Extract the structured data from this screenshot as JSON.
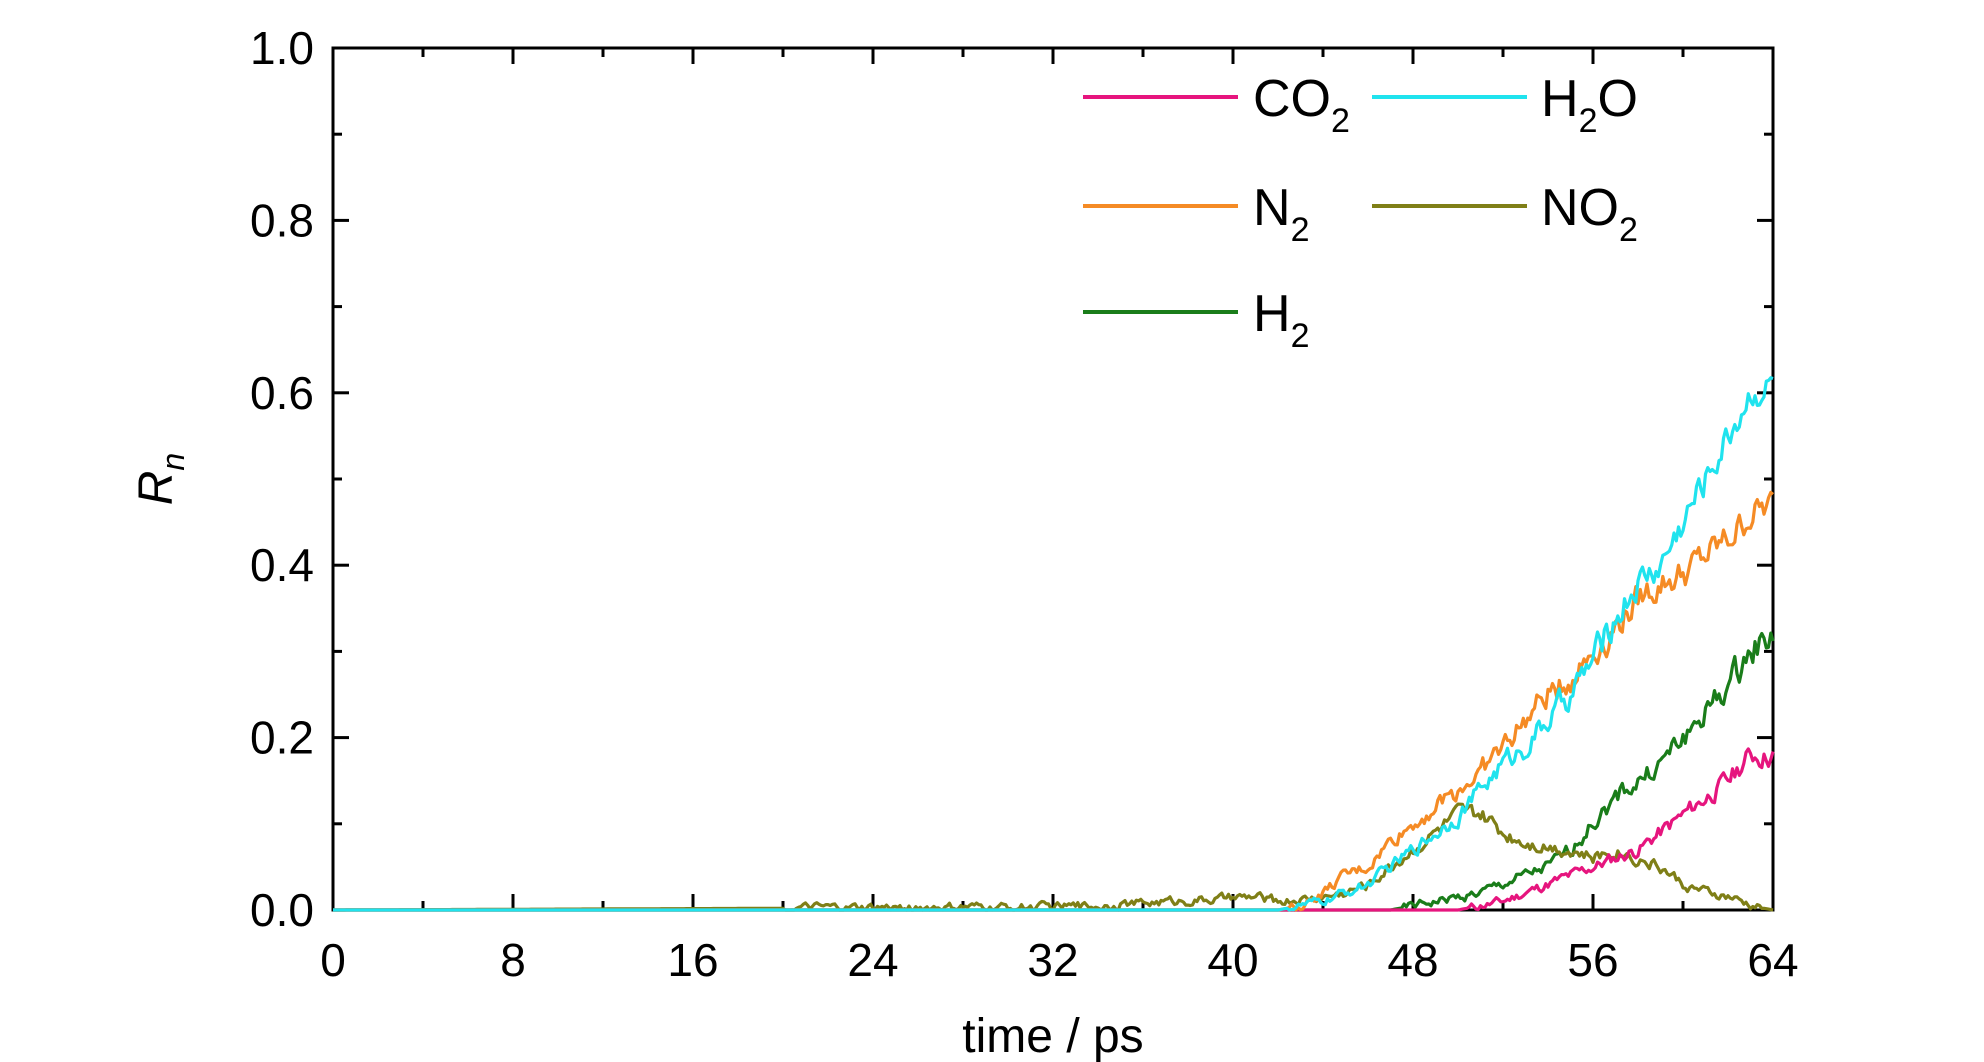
{
  "chart_data": {
    "type": "line",
    "xlabel": "time / ps",
    "ylabel": "R_n",
    "xlim": [
      0,
      64
    ],
    "ylim": [
      0,
      1.0
    ],
    "x_ticks": [
      "0",
      "8",
      "16",
      "24",
      "32",
      "40",
      "48",
      "56",
      "64"
    ],
    "y_ticks": [
      "0.0",
      "0.2",
      "0.4",
      "0.6",
      "0.8",
      "1.0"
    ],
    "grid": false,
    "legend_position": "top-right",
    "series": [
      {
        "name": "CO2",
        "label_main": "CO",
        "label_sub": "2",
        "label_tail": "",
        "color": "#e6157e",
        "x": [
          0,
          44,
          46,
          48,
          50,
          51,
          52,
          53,
          54,
          55,
          56,
          57,
          58,
          59,
          60,
          61,
          62,
          63,
          64
        ],
        "y": [
          0,
          0,
          0,
          0,
          0,
          0.005,
          0.01,
          0.02,
          0.03,
          0.04,
          0.05,
          0.06,
          0.07,
          0.09,
          0.11,
          0.13,
          0.15,
          0.18,
          0.18
        ]
      },
      {
        "name": "H2O",
        "label_main": "H",
        "label_sub": "2",
        "label_tail": "O",
        "color": "#20e3ee",
        "x": [
          0,
          42,
          44,
          46,
          47,
          48,
          49,
          50,
          51,
          52,
          53,
          54,
          55,
          56,
          57,
          58,
          59,
          60,
          61,
          62,
          63,
          64
        ],
        "y": [
          0,
          0,
          0.01,
          0.03,
          0.05,
          0.07,
          0.09,
          0.11,
          0.14,
          0.17,
          0.19,
          0.22,
          0.25,
          0.29,
          0.34,
          0.38,
          0.4,
          0.45,
          0.5,
          0.55,
          0.6,
          0.61
        ]
      },
      {
        "name": "N2",
        "label_main": "N",
        "label_sub": "2",
        "label_tail": "",
        "color": "#f58b25",
        "x": [
          0,
          42,
          43,
          44,
          45,
          46,
          47,
          48,
          49,
          50,
          51,
          52,
          53,
          54,
          55,
          56,
          57,
          58,
          59,
          60,
          61,
          62,
          63,
          64
        ],
        "y": [
          0,
          0,
          0.005,
          0.02,
          0.04,
          0.05,
          0.08,
          0.1,
          0.12,
          0.14,
          0.16,
          0.19,
          0.22,
          0.25,
          0.27,
          0.3,
          0.33,
          0.36,
          0.38,
          0.39,
          0.41,
          0.43,
          0.46,
          0.47
        ]
      },
      {
        "name": "NO2",
        "label_main": "NO",
        "label_sub": "2",
        "label_tail": "",
        "color": "#7f7f17",
        "x": [
          0,
          30,
          34,
          37,
          39,
          41,
          42,
          43,
          44,
          45,
          46,
          47,
          48,
          49,
          50,
          51,
          52,
          53,
          54,
          55,
          56,
          57,
          58,
          59,
          60,
          61,
          62,
          63,
          64
        ],
        "y": [
          0,
          0.003,
          0.005,
          0.01,
          0.012,
          0.015,
          0.01,
          0.012,
          0.015,
          0.02,
          0.03,
          0.05,
          0.07,
          0.09,
          0.11,
          0.11,
          0.09,
          0.08,
          0.075,
          0.07,
          0.06,
          0.07,
          0.06,
          0.05,
          0.03,
          0.02,
          0.015,
          0.005,
          0
        ]
      },
      {
        "name": "H2",
        "label_main": "H",
        "label_sub": "2",
        "label_tail": "",
        "color": "#1a7d1a",
        "x": [
          0,
          45,
          47,
          48,
          49,
          50,
          51,
          52,
          53,
          54,
          55,
          56,
          57,
          58,
          59,
          60,
          61,
          62,
          63,
          64
        ],
        "y": [
          0,
          0,
          0,
          0.005,
          0.01,
          0.015,
          0.02,
          0.03,
          0.04,
          0.05,
          0.07,
          0.1,
          0.13,
          0.15,
          0.17,
          0.2,
          0.23,
          0.26,
          0.3,
          0.32
        ]
      }
    ]
  }
}
